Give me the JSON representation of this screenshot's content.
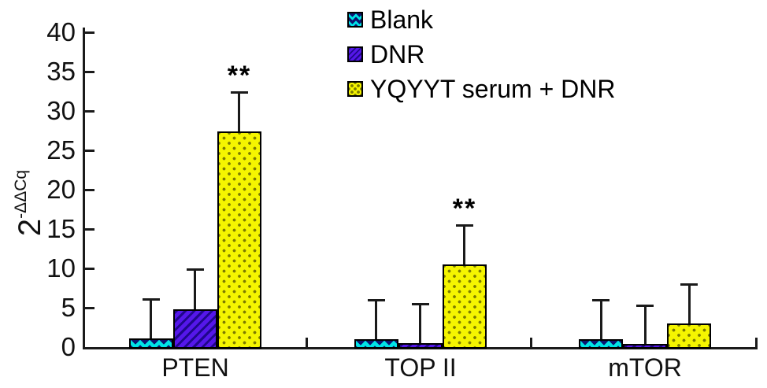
{
  "figure": {
    "background": "#ffffff",
    "text_color": "#111111",
    "axis_color": "#1a1a1a"
  },
  "chart_data": {
    "type": "bar",
    "title": "",
    "xlabel": "",
    "ylabel_base": "2",
    "ylabel_sup": "-ΔΔCq",
    "ylim": [
      0,
      40
    ],
    "ytick_step": 5,
    "yticks": [
      0,
      5,
      10,
      15,
      20,
      25,
      30,
      35,
      40
    ],
    "grid": false,
    "legend_position": "top-center",
    "categories": [
      "PTEN",
      "TOP II",
      "mTOR"
    ],
    "series": [
      {
        "name": "Blank",
        "color": "#00e4e6",
        "pattern": "zigzag",
        "values": [
          1.1,
          1.0,
          1.0
        ],
        "errors_plus": [
          5.0,
          5.0,
          5.0
        ]
      },
      {
        "name": "DNR",
        "color": "#5517ea",
        "pattern": "diagonal-stripes",
        "values": [
          4.8,
          0.5,
          0.4
        ],
        "errors_plus": [
          5.1,
          5.0,
          4.9
        ]
      },
      {
        "name": "YQYYT serum + DNR",
        "color": "#f5f500",
        "pattern": "dots",
        "values": [
          27.4,
          10.5,
          3.0
        ],
        "errors_plus": [
          5.0,
          5.0,
          5.0
        ]
      }
    ],
    "annotations": [
      {
        "text": "**",
        "category": "PTEN",
        "series": "YQYYT serum + DNR"
      },
      {
        "text": "**",
        "category": "TOP II",
        "series": "YQYYT serum + DNR"
      }
    ]
  }
}
